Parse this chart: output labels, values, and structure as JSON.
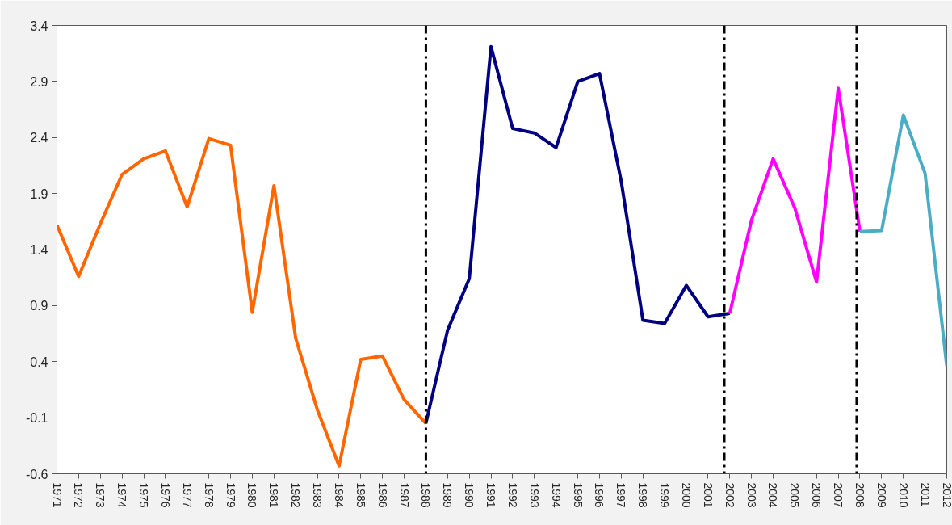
{
  "chart_data": {
    "type": "line",
    "series": [
      {
        "color": "#ff6600",
        "x": [
          1971,
          1972,
          1973,
          1974,
          1975,
          1976,
          1977,
          1978,
          1979,
          1980,
          1981,
          1982,
          1983,
          1984,
          1985,
          1986,
          1987,
          1988
        ],
        "values": [
          1.62,
          1.16,
          1.63,
          2.07,
          2.21,
          2.28,
          1.78,
          2.39,
          2.33,
          0.84,
          1.97,
          0.61,
          -0.03,
          -0.53,
          0.42,
          0.45,
          0.06,
          -0.15
        ]
      },
      {
        "color": "#000080",
        "x": [
          1988,
          1989,
          1990,
          1991,
          1992,
          1993,
          1994,
          1995,
          1996,
          1997,
          1998,
          1999,
          2000,
          2001,
          2002
        ],
        "values": [
          -0.15,
          0.68,
          1.14,
          3.21,
          2.48,
          2.44,
          2.31,
          2.9,
          2.97,
          2.01,
          0.77,
          0.74,
          1.08,
          0.8,
          0.83
        ]
      },
      {
        "color": "#ff00ff",
        "x": [
          2002,
          2003,
          2004,
          2005,
          2006,
          2007,
          2008
        ],
        "values": [
          0.83,
          1.66,
          2.21,
          1.77,
          1.11,
          2.84,
          1.56
        ]
      },
      {
        "color": "#4bacc6",
        "x": [
          2008,
          2009,
          2010,
          2011,
          2012
        ],
        "values": [
          1.56,
          1.57,
          2.6,
          2.08,
          0.36
        ]
      }
    ],
    "xlim": [
      1971,
      2012
    ],
    "xticks": [
      1971,
      1972,
      1973,
      1974,
      1975,
      1976,
      1977,
      1978,
      1979,
      1980,
      1981,
      1982,
      1983,
      1984,
      1985,
      1986,
      1987,
      1988,
      1989,
      1990,
      1991,
      1992,
      1993,
      1994,
      1995,
      1996,
      1997,
      1998,
      1999,
      2000,
      2001,
      2002,
      2003,
      2004,
      2005,
      2006,
      2007,
      2008,
      2009,
      2010,
      2011,
      2012
    ],
    "ylim": [
      -0.6,
      3.4
    ],
    "yticks": [
      -0.6,
      -0.1,
      0.4,
      0.9,
      1.4,
      1.9,
      2.4,
      2.9,
      3.4
    ],
    "ref_lines": [
      {
        "axis": "x",
        "value": 1988,
        "color": "#000000",
        "line_style": "dashdot"
      },
      {
        "axis": "x",
        "value": 2001.75,
        "color": "#000000",
        "line_style": "dashdot"
      },
      {
        "axis": "x",
        "value": 2007.85,
        "color": "#000000",
        "line_style": "dashdot"
      }
    ],
    "grid": false,
    "marker": "none",
    "line_style": "solid"
  }
}
